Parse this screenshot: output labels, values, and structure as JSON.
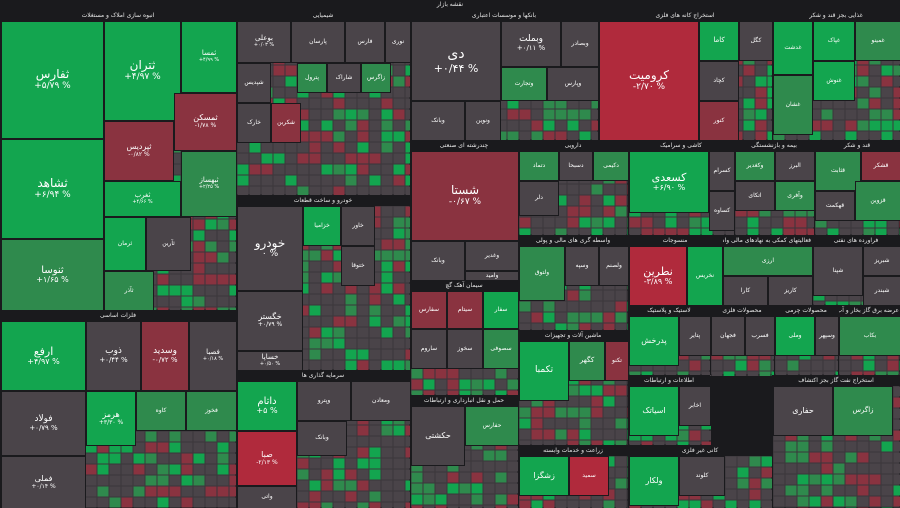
{
  "chart_data": {
    "type": "treemap",
    "title": "نقشه بازار",
    "colors": {
      "strong_pos": "#13a54f",
      "pos": "#2f8a4d",
      "neutral": "#4a4449",
      "neg": "#8a3340",
      "strong_neg": "#b02a3c"
    },
    "sectors": [
      {
        "name": "انبوه سازی املاک و مستغلات",
        "tiles": [
          {
            "name": "ثفارس",
            "value": "+۵/۷۹ %",
            "change": 5.79
          },
          {
            "name": "ثتران",
            "value": "+۴/۹۷ %",
            "change": 4.97
          },
          {
            "name": "ثمسا",
            "value": "+۴/۹۹ %",
            "change": 4.99
          },
          {
            "name": "ثنوسا",
            "value": "+۱/۶۵ %",
            "change": 1.65
          },
          {
            "name": "ثشاهد",
            "value": "+۶/۹۴ %",
            "change": 6.94
          },
          {
            "name": "ثپردیس",
            "value": "-۰/۸۲ %",
            "change": -0.82
          },
          {
            "name": "ثمسکن",
            "value": "-۱/۷۸ %",
            "change": -1.78
          },
          {
            "name": "ثغرب",
            "value": "+۴/۶۶ %",
            "change": 4.66
          },
          {
            "name": "ثبهساز",
            "value": "+۲/۲۵ %",
            "change": 2.25
          },
          {
            "name": "ثرمان",
            "value": "",
            "change": 3.0
          },
          {
            "name": "ثآرین",
            "value": "",
            "change": 0.5
          },
          {
            "name": "ثآذر",
            "value": "",
            "change": 2.4
          }
        ]
      },
      {
        "name": "فلزات اساسی",
        "tiles": [
          {
            "name": "ارفع",
            "value": "+۴/۹۷ %",
            "change": 4.97
          },
          {
            "name": "ذوب",
            "value": "+۰/۴۴ %",
            "change": 0.44
          },
          {
            "name": "وسدید",
            "value": "-۰/۷۲ %",
            "change": -0.72
          },
          {
            "name": "فصبا",
            "value": "+۰/۱۸ %",
            "change": 0.18
          },
          {
            "name": "فولاد",
            "value": "+۰/۷۹ %",
            "change": 0.79
          },
          {
            "name": "هرمز",
            "value": "+۳/۳۰ %",
            "change": 3.3
          },
          {
            "name": "فملی",
            "value": "+۰/۱۴ %",
            "change": 0.14
          },
          {
            "name": "کاوه",
            "value": "",
            "change": 2.0
          },
          {
            "name": "فخوز",
            "value": "",
            "change": 1.2
          }
        ]
      },
      {
        "name": "شیمیایی",
        "tiles": [
          {
            "name": "بوعلی",
            "value": "+۰/۰۳ %",
            "change": 0.03
          },
          {
            "name": "پارسان",
            "value": "",
            "change": 0.1
          },
          {
            "name": "فارس",
            "value": "",
            "change": 0.2
          },
          {
            "name": "نوری",
            "value": "",
            "change": 0.4
          },
          {
            "name": "شپدیس",
            "value": "",
            "change": 0.1
          },
          {
            "name": "پترول",
            "value": "",
            "change": 1.5
          },
          {
            "name": "شاراک",
            "value": "",
            "change": 0.3
          },
          {
            "name": "زاگرس",
            "value": "",
            "change": 2.1
          },
          {
            "name": "خارک",
            "value": "",
            "change": 0.0
          },
          {
            "name": "شکربن",
            "value": "",
            "change": -0.6
          }
        ]
      },
      {
        "name": "خودرو و ساخت قطعات",
        "tiles": [
          {
            "name": "خودرو",
            "value": "۰ %",
            "change": 0.0
          },
          {
            "name": "خگستر",
            "value": "+۰/۷۹ %",
            "change": 0.79
          },
          {
            "name": "خساپا",
            "value": "+۰/۵۰ %",
            "change": 0.5
          },
          {
            "name": "خزامیا",
            "value": "",
            "change": 4.0
          },
          {
            "name": "خاور",
            "value": "",
            "change": 0.2
          },
          {
            "name": "ختوقا",
            "value": "",
            "change": 0.3
          }
        ]
      },
      {
        "name": "سرمایه گذاری ها",
        "tiles": [
          {
            "name": "داتام",
            "value": "+۵ %",
            "change": 5.0
          },
          {
            "name": "وپترو",
            "value": "",
            "change": -0.4
          },
          {
            "name": "ومعادن",
            "value": "",
            "change": 0.1
          },
          {
            "name": "صبا",
            "value": "-۲/۱۳ %",
            "change": -2.13
          },
          {
            "name": "وبانک",
            "value": "",
            "change": 0.2
          },
          {
            "name": "واتی",
            "value": "",
            "change": 0.1
          }
        ]
      },
      {
        "name": "بانکها و موسسات اعتباری",
        "tiles": [
          {
            "name": "دی",
            "value": "+۰/۴۴ %",
            "change": 0.44
          },
          {
            "name": "وبملت",
            "value": "+۰/۱۱ %",
            "change": 0.11
          },
          {
            "name": "وبصادر",
            "value": "",
            "change": 0.3
          },
          {
            "name": "وتجارت",
            "value": "",
            "change": 1.6
          },
          {
            "name": "ونوین",
            "value": "",
            "change": 0.0
          },
          {
            "name": "وپارس",
            "value": "",
            "change": 0.1
          },
          {
            "name": "وبانک",
            "value": "",
            "change": 0.2
          }
        ]
      },
      {
        "name": "چندرشته ای صنعتی",
        "tiles": [
          {
            "name": "شستا",
            "value": "-۰/۶۷ %",
            "change": -0.67
          },
          {
            "name": "وبانک",
            "value": "",
            "change": 0.1
          },
          {
            "name": "وغدیر",
            "value": "",
            "change": 0.0
          },
          {
            "name": "وامید",
            "value": "",
            "change": 0.2
          }
        ]
      },
      {
        "name": "سیمان آهک گچ",
        "tiles": [
          {
            "name": "سفارس",
            "value": "",
            "change": -1.5
          },
          {
            "name": "سیتام",
            "value": "",
            "change": -1.2
          },
          {
            "name": "سفار",
            "value": "",
            "change": 3.0
          },
          {
            "name": "ساروم",
            "value": "",
            "change": 0.3
          },
          {
            "name": "سخوز",
            "value": "",
            "change": 0.2
          },
          {
            "name": "سصوفی",
            "value": "",
            "change": 2.0
          }
        ]
      },
      {
        "name": "استخراج کانه های فلزی",
        "tiles": [
          {
            "name": "کرومیت",
            "value": "-۲/۷۰ %",
            "change": -2.7
          },
          {
            "name": "کاما",
            "value": "",
            "change": 3.0
          },
          {
            "name": "کگل",
            "value": "",
            "change": 0.2
          },
          {
            "name": "کچاد",
            "value": "",
            "change": 0.1
          },
          {
            "name": "کنور",
            "value": "",
            "change": -0.5
          }
        ]
      },
      {
        "name": "غذایی بجز قند و شکر",
        "tiles": [
          {
            "name": "غدشت",
            "value": "",
            "change": 3.5
          },
          {
            "name": "غپاک",
            "value": "",
            "change": 3.2
          },
          {
            "name": "غمینو",
            "value": "",
            "change": 2.8
          },
          {
            "name": "غشان",
            "value": "",
            "change": 2.5
          },
          {
            "name": "غنوش",
            "value": "",
            "change": 4.0
          }
        ]
      },
      {
        "name": "دارویی",
        "tiles": [
          {
            "name": "دتماد",
            "value": "",
            "change": 1.5
          },
          {
            "name": "دسبحا",
            "value": "",
            "change": 0.3
          },
          {
            "name": "دکیمی",
            "value": "",
            "change": 2.0
          },
          {
            "name": "دلر",
            "value": "",
            "change": 0.1
          }
        ]
      },
      {
        "name": "کاشی و سرامیک",
        "tiles": [
          {
            "name": "کسعدی",
            "value": "+۶/۹۰ %",
            "change": 6.9
          },
          {
            "name": "کسرام",
            "value": "",
            "change": 0.3
          },
          {
            "name": "کساوه",
            "value": "",
            "change": 0.1
          }
        ]
      },
      {
        "name": "بیمه و بازنشستگی",
        "tiles": [
          {
            "name": "وکغدیر",
            "value": "",
            "change": 2.0
          },
          {
            "name": "البرز",
            "value": "",
            "change": 0.3
          },
          {
            "name": "اتکای",
            "value": "",
            "change": 0.2
          },
          {
            "name": "وآفری",
            "value": "",
            "change": 1.4
          }
        ]
      },
      {
        "name": "قند و شکر",
        "tiles": [
          {
            "name": "قثابت",
            "value": "",
            "change": 1.8
          },
          {
            "name": "قشکر",
            "value": "",
            "change": -1.0
          },
          {
            "name": "قهکمت",
            "value": "",
            "change": 0.4
          },
          {
            "name": "قزوین",
            "value": "",
            "change": 2.2
          }
        ]
      },
      {
        "name": "واسطه گری های مالی و پولی",
        "tiles": [
          {
            "name": "ولتوق",
            "value": "",
            "change": 2.0
          },
          {
            "name": "وسپه",
            "value": "",
            "change": 0.2
          },
          {
            "name": "ولصنم",
            "value": "",
            "change": 0.1
          }
        ]
      },
      {
        "name": "منسوجات",
        "tiles": [
          {
            "name": "نطرین",
            "value": "-۳/۸۹ %",
            "change": -3.89
          },
          {
            "name": "نخریس",
            "value": "",
            "change": 3.5
          }
        ]
      },
      {
        "name": "فعالیتهای کمکی به نهادهای مالی واسط",
        "tiles": [
          {
            "name": "ارزی",
            "value": "",
            "change": 1.6
          },
          {
            "name": "کارا",
            "value": "",
            "change": 0.2
          },
          {
            "name": "کاریز",
            "value": "",
            "change": 0.1
          }
        ]
      },
      {
        "name": "فراورده های نفتی",
        "tiles": [
          {
            "name": "شپنا",
            "value": "",
            "change": 0.1
          },
          {
            "name": "شبریز",
            "value": "",
            "change": 0.2
          },
          {
            "name": "شبندر",
            "value": "",
            "change": 0.3
          }
        ]
      },
      {
        "name": "ماشین آلات و تجهیزات",
        "tiles": [
          {
            "name": "تکمبا",
            "value": "",
            "change": 3.6
          },
          {
            "name": "کگهر",
            "value": "",
            "change": 2.0
          },
          {
            "name": "تکنو",
            "value": "",
            "change": -0.8
          }
        ]
      },
      {
        "name": "لاستیک و پلاستیک",
        "tiles": [
          {
            "name": "پدرخش",
            "value": "",
            "change": 4.2
          },
          {
            "name": "پتایر",
            "value": "",
            "change": 0.3
          }
        ]
      },
      {
        "name": "محصولات فلزی",
        "tiles": [
          {
            "name": "فجهان",
            "value": "",
            "change": 0.2
          },
          {
            "name": "فسرب",
            "value": "",
            "change": 0.1
          }
        ]
      },
      {
        "name": "محصولات چرمی",
        "tiles": [
          {
            "name": "وملی",
            "value": "",
            "change": 4.1
          },
          {
            "name": "وسپهر",
            "value": "",
            "change": 0.2
          }
        ]
      },
      {
        "name": "عرضه برق گاز بخار و آب گرم",
        "tiles": [
          {
            "name": "بکاب",
            "value": "",
            "change": 1.5
          }
        ]
      },
      {
        "name": "اطلاعات و ارتباطات",
        "tiles": [
          {
            "name": "اسیاتک",
            "value": "",
            "change": 4.4
          },
          {
            "name": "اخابر",
            "value": "",
            "change": 0.3
          }
        ]
      },
      {
        "name": "حمل و نقل انبارداری و ارتباطات",
        "tiles": [
          {
            "name": "حکشتی",
            "value": "",
            "change": 0.1
          },
          {
            "name": "حفارس",
            "value": "",
            "change": 2.0
          }
        ]
      },
      {
        "name": "زراعت و خدمات وابسته",
        "tiles": [
          {
            "name": "زشگزا",
            "value": "",
            "change": 4.0
          },
          {
            "name": "سمید",
            "value": "",
            "change": -2.0
          }
        ]
      },
      {
        "name": "کانی غیر فلزی",
        "tiles": [
          {
            "name": "ولکار",
            "value": "",
            "change": 3.5
          },
          {
            "name": "کلوند",
            "value": "",
            "change": 0.2
          }
        ]
      },
      {
        "name": "استخراج نفت گاز بجز اکتشاف",
        "tiles": [
          {
            "name": "حفاری",
            "value": "",
            "change": 0.2
          },
          {
            "name": "زاگرس",
            "value": "",
            "change": 2.3
          }
        ]
      }
    ]
  }
}
